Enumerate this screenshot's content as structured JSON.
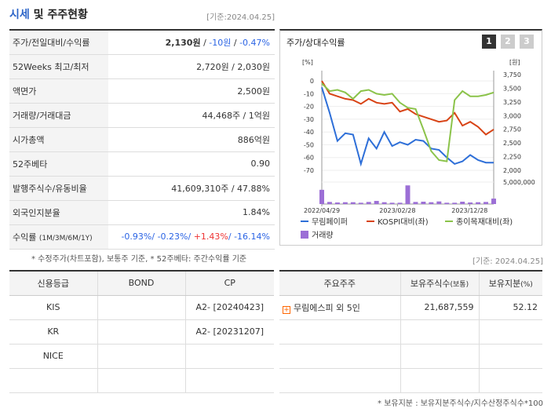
{
  "header": {
    "title_main": "시세",
    "title_rest": " 및 주주현황",
    "date": "[기준:2024.04.25]"
  },
  "info": [
    {
      "label": "주가/전일대비/수익률",
      "price": "2,130원",
      "sep1": " / ",
      "change": "-10원",
      "sep2": " / ",
      "rate": "-0.47%"
    },
    {
      "label": "52Weeks 최고/최저",
      "value": "2,720원 / 2,030원"
    },
    {
      "label": "액면가",
      "value": "2,500원"
    },
    {
      "label": "거래량/거래대금",
      "value": "44,468주 / 1억원"
    },
    {
      "label": "시가총액",
      "value": "886억원"
    },
    {
      "label": "52주베타",
      "value": "0.90"
    },
    {
      "label": "발행주식수/유동비율",
      "value": "41,609,310주 / 47.88%"
    },
    {
      "label": "외국인지분율",
      "value": "1.84%"
    },
    {
      "label": "수익률",
      "label_small": "(1M/3M/6M/1Y)",
      "r1": "-0.93%",
      "r2": "-0.23%",
      "r3": "+1.43%",
      "r4": "-16.14%",
      "sep": "/ "
    }
  ],
  "note1": "* 수정주가(차트포함), 보통주 기준, * 52주베타: 주간수익률 기준",
  "chart": {
    "title": "주가/상대수익률",
    "tabs": [
      "1",
      "2",
      "3"
    ],
    "left_unit": "[%]",
    "right_unit": "[원]",
    "volume_tick": "5,000,000",
    "legend": [
      "무림페이퍼",
      "KOSPI대비(좌)",
      "종이목재대비(좌)",
      "거래량"
    ],
    "colors": {
      "stock": "#2e6fd8",
      "kospi": "#d84315",
      "sector": "#8bc34a",
      "volume": "#9c6fd6"
    }
  },
  "chart_data": {
    "type": "line",
    "x_ticks": [
      "2022/04/29",
      "2023/02/28",
      "2023/12/28"
    ],
    "y_left_ticks": [
      "0",
      "-10",
      "-20",
      "-30",
      "-40",
      "-50",
      "-60",
      "-70"
    ],
    "y_left_range": [
      -70,
      5
    ],
    "y_right_ticks": [
      "3,750",
      "3,500",
      "3,250",
      "3,000",
      "2,750",
      "2,500",
      "2,250",
      "2,000"
    ],
    "y_right_range": [
      2000,
      3750
    ],
    "series": [
      {
        "name": "무림페이퍼",
        "values": [
          -5,
          -25,
          -47,
          -41,
          -42,
          -65,
          -45,
          -53,
          -40,
          -51,
          -48,
          -50,
          -46,
          -47,
          -53,
          -54,
          -60,
          -65,
          -63,
          -58,
          -62,
          -64,
          -64
        ]
      },
      {
        "name": "KOSPI대비(좌)",
        "values": [
          0,
          -10,
          -12,
          -14,
          -15,
          -18,
          -14,
          -17,
          -18,
          -17,
          -24,
          -22,
          -26,
          -28,
          -30,
          -32,
          -31,
          -25,
          -35,
          -32,
          -36,
          -42,
          -38
        ]
      },
      {
        "name": "종이목재대비(좌)",
        "values": [
          -2,
          -8,
          -7,
          -9,
          -14,
          -8,
          -7,
          -10,
          -11,
          -10,
          -17,
          -21,
          -22,
          -38,
          -55,
          -62,
          -63,
          -15,
          -8,
          -12,
          -12,
          -11,
          -9
        ]
      }
    ],
    "volume": [
      0.55,
      0.08,
      0.06,
      0.07,
      0.07,
      0.05,
      0.08,
      0.12,
      0.07,
      0.05,
      0.05,
      0.72,
      0.08,
      0.09,
      0.07,
      0.1,
      0.05,
      0.05,
      0.09,
      0.06,
      0.07,
      0.08,
      0.21
    ]
  },
  "date2": "[기준: 2024.04.25]",
  "credit": {
    "headers": [
      "신용등급",
      "BOND",
      "CP"
    ],
    "rows": [
      [
        "KIS",
        "",
        "A2-  [20240423]"
      ],
      [
        "KR",
        "",
        "A2-  [20231207]"
      ],
      [
        "NICE",
        "",
        ""
      ],
      [
        "",
        "",
        ""
      ]
    ]
  },
  "holders": {
    "headers": [
      "주요주주",
      "보유주식수",
      "(보통)",
      "보유지분",
      "(%)"
    ],
    "rows": [
      {
        "name": "무림에스피 외 5인",
        "shares": "21,687,559",
        "pct": "52.12"
      }
    ]
  },
  "note2": "* 보유지분 : 보유지분주식수/지수산정주식수*100"
}
